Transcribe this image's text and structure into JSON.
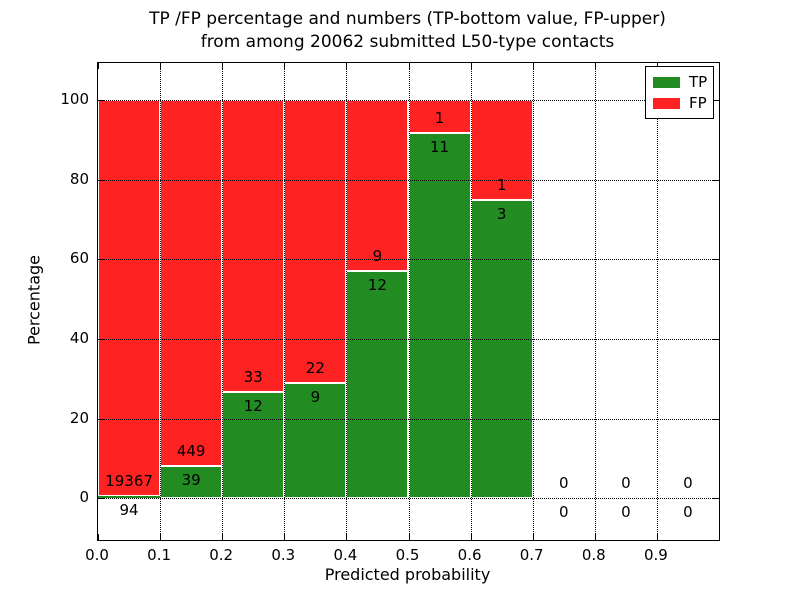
{
  "figure": {
    "title_line1": "TP /FP percentage and numbers (TP-bottom value, FP-upper)",
    "title_line2": "from among 20062 submitted L50-type contacts",
    "xlabel": "Predicted probability",
    "ylabel": "Percentage",
    "total_contacts": 20062
  },
  "legend": {
    "position": "upper right",
    "items": [
      {
        "label": "TP",
        "color": "#228b22"
      },
      {
        "label": "FP",
        "color": "#ff2222"
      }
    ]
  },
  "chart_data": {
    "type": "bar",
    "stacked": true,
    "title": "TP /FP percentage and numbers (TP-bottom value, FP-upper) from among 20062 submitted L50-type contacts",
    "xlabel": "Predicted probability",
    "ylabel": "Percentage",
    "xlim": [
      0.0,
      1.0
    ],
    "ylim": [
      -10.5,
      109.3
    ],
    "grid": "dotted",
    "legend_position": "upper right",
    "colors": {
      "tp": "#228b22",
      "fp": "#ff2222",
      "bar_edge": "#ffffff"
    },
    "xticks": [
      {
        "v": 0.0,
        "label": "0.0"
      },
      {
        "v": 0.1,
        "label": "0.1"
      },
      {
        "v": 0.2,
        "label": "0.2"
      },
      {
        "v": 0.3,
        "label": "0.3"
      },
      {
        "v": 0.4,
        "label": "0.4"
      },
      {
        "v": 0.5,
        "label": "0.5"
      },
      {
        "v": 0.6,
        "label": "0.6"
      },
      {
        "v": 0.7,
        "label": "0.7"
      },
      {
        "v": 0.8,
        "label": "0.8"
      },
      {
        "v": 0.9,
        "label": "0.9"
      }
    ],
    "yticks": [
      {
        "v": 0,
        "label": "0"
      },
      {
        "v": 20,
        "label": "20"
      },
      {
        "v": 40,
        "label": "40"
      },
      {
        "v": 60,
        "label": "60"
      },
      {
        "v": 80,
        "label": "80"
      },
      {
        "v": 100,
        "label": "100"
      }
    ],
    "series": [
      {
        "name": "TP",
        "color": "#228b22",
        "position": "bottom"
      },
      {
        "name": "FP",
        "color": "#ff2222",
        "position": "top"
      }
    ],
    "bins": [
      {
        "x0": 0.0,
        "x1": 0.1,
        "tp_count": 94,
        "fp_count": 19367,
        "tp_pct": 0.48,
        "fp_pct": 99.52,
        "has_bar": true
      },
      {
        "x0": 0.1,
        "x1": 0.2,
        "tp_count": 39,
        "fp_count": 449,
        "tp_pct": 7.99,
        "fp_pct": 92.01,
        "has_bar": true
      },
      {
        "x0": 0.2,
        "x1": 0.3,
        "tp_count": 12,
        "fp_count": 33,
        "tp_pct": 26.67,
        "fp_pct": 73.33,
        "has_bar": true
      },
      {
        "x0": 0.3,
        "x1": 0.4,
        "tp_count": 9,
        "fp_count": 22,
        "tp_pct": 29.03,
        "fp_pct": 70.97,
        "has_bar": true
      },
      {
        "x0": 0.4,
        "x1": 0.5,
        "tp_count": 12,
        "fp_count": 9,
        "tp_pct": 57.14,
        "fp_pct": 42.86,
        "has_bar": true
      },
      {
        "x0": 0.5,
        "x1": 0.6,
        "tp_count": 11,
        "fp_count": 1,
        "tp_pct": 91.67,
        "fp_pct": 8.33,
        "has_bar": true
      },
      {
        "x0": 0.6,
        "x1": 0.7,
        "tp_count": 3,
        "fp_count": 1,
        "tp_pct": 75.0,
        "fp_pct": 25.0,
        "has_bar": true
      },
      {
        "x0": 0.7,
        "x1": 0.8,
        "tp_count": 0,
        "fp_count": 0,
        "tp_pct": 0,
        "fp_pct": 0,
        "has_bar": false
      },
      {
        "x0": 0.8,
        "x1": 0.9,
        "tp_count": 0,
        "fp_count": 0,
        "tp_pct": 0,
        "fp_pct": 0,
        "has_bar": false
      },
      {
        "x0": 0.9,
        "x1": 1.0,
        "tp_count": 0,
        "fp_count": 0,
        "tp_pct": 0,
        "fp_pct": 0,
        "has_bar": false
      }
    ]
  }
}
